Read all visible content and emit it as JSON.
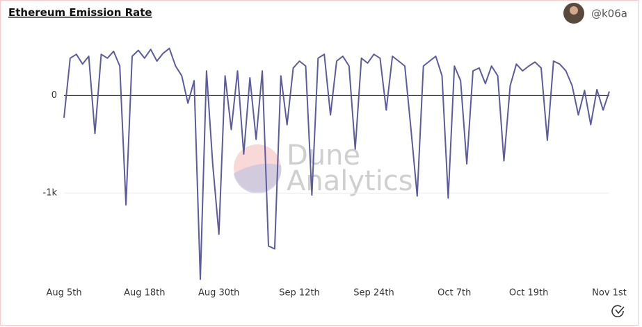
{
  "header": {
    "title": "Ethereum Emission Rate",
    "author": "@k06a"
  },
  "watermark": [
    "Dune",
    "Analytics"
  ],
  "chart_data": {
    "type": "line",
    "x": [
      "Aug 5th",
      "Aug 6th",
      "Aug 7th",
      "Aug 8th",
      "Aug 9th",
      "Aug 10th",
      "Aug 11th",
      "Aug 12th",
      "Aug 13th",
      "Aug 14th",
      "Aug 15th",
      "Aug 16th",
      "Aug 17th",
      "Aug 18th",
      "Aug 19th",
      "Aug 20th",
      "Aug 21st",
      "Aug 22nd",
      "Aug 23rd",
      "Aug 24th",
      "Aug 25th",
      "Aug 26th",
      "Aug 27th",
      "Aug 28th",
      "Aug 29th",
      "Aug 30th",
      "Aug 31st",
      "Sep 1st",
      "Sep 2nd",
      "Sep 3rd",
      "Sep 4th",
      "Sep 5th",
      "Sep 6th",
      "Sep 7th",
      "Sep 8th",
      "Sep 9th",
      "Sep 10th",
      "Sep 11th",
      "Sep 12th",
      "Sep 13th",
      "Sep 14th",
      "Sep 15th",
      "Sep 16th",
      "Sep 17th",
      "Sep 18th",
      "Sep 19th",
      "Sep 20th",
      "Sep 21st",
      "Sep 22nd",
      "Sep 23rd",
      "Sep 24th",
      "Sep 25th",
      "Sep 26th",
      "Sep 27th",
      "Sep 28th",
      "Sep 29th",
      "Sep 30th",
      "Oct 1st",
      "Oct 2nd",
      "Oct 3rd",
      "Oct 4th",
      "Oct 5th",
      "Oct 6th",
      "Oct 7th",
      "Oct 8th",
      "Oct 9th",
      "Oct 10th",
      "Oct 11th",
      "Oct 12th",
      "Oct 13th",
      "Oct 14th",
      "Oct 15th",
      "Oct 16th",
      "Oct 17th",
      "Oct 18th",
      "Oct 19th",
      "Oct 20th",
      "Oct 21st",
      "Oct 22nd",
      "Oct 23rd",
      "Oct 24th",
      "Oct 25th",
      "Oct 26th",
      "Oct 27th",
      "Oct 28th",
      "Oct 29th",
      "Oct 30th",
      "Oct 31st",
      "Nov 1st"
    ],
    "series": [
      {
        "color": "#5b5b9e",
        "values": [
          -230,
          380,
          420,
          320,
          400,
          -390,
          420,
          380,
          450,
          300,
          -1120,
          400,
          460,
          380,
          470,
          350,
          430,
          480,
          300,
          200,
          -80,
          150,
          -1880,
          250,
          -700,
          -1420,
          200,
          -350,
          250,
          -600,
          180,
          -450,
          250,
          -1540,
          -1570,
          200,
          -300,
          280,
          350,
          300,
          -1020,
          380,
          420,
          -200,
          350,
          400,
          300,
          -550,
          380,
          330,
          420,
          380,
          -150,
          400,
          350,
          300,
          -350,
          -1030,
          300,
          350,
          400,
          200,
          -1050,
          300,
          150,
          -700,
          250,
          280,
          120,
          300,
          200,
          -670,
          100,
          320,
          250,
          300,
          340,
          280,
          -460,
          350,
          320,
          250,
          100,
          -200,
          50,
          -300,
          60,
          -150,
          40
        ]
      }
    ],
    "xticks": [
      "Aug 5th",
      "Aug 18th",
      "Aug 30th",
      "Sep 12th",
      "Sep 24th",
      "Oct 7th",
      "Oct 19th",
      "Nov 1st"
    ],
    "ylim": [
      -1900,
      620
    ],
    "yticks": [
      {
        "value": -1000,
        "label": "-1k"
      },
      0
    ],
    "grid": true
  }
}
